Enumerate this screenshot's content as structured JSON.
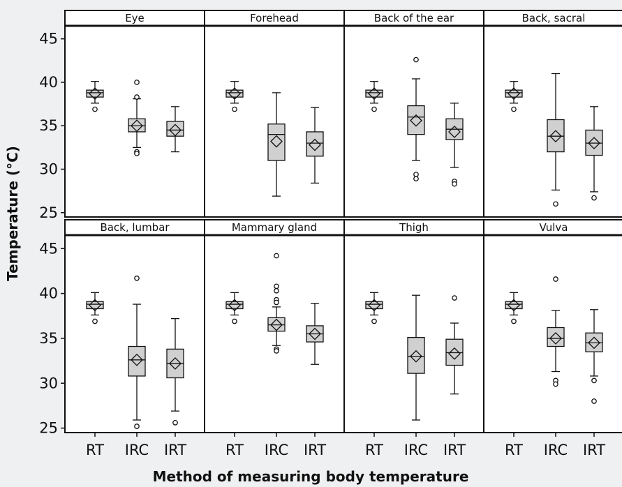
{
  "colors": {
    "background": "#eef0f1",
    "plot_area": "#ffffff",
    "box_fill": "#d0d0d0",
    "stroke": "#111111"
  },
  "chart_data": {
    "type": "boxplot",
    "xlabel": "Method of measuring body temperature",
    "ylabel": "Temperature (°C)",
    "ylim": [
      24.5,
      46.5
    ],
    "yticks": [
      25,
      30,
      35,
      40,
      45
    ],
    "categories": [
      "RT",
      "IRC",
      "IRT"
    ],
    "layout": "2 rows x 4 panels",
    "grid": false,
    "mean_marker": "diamond",
    "outlier_marker": "circle",
    "panels": [
      {
        "title": "Eye",
        "boxes": [
          {
            "category": "RT",
            "min": 37.6,
            "q1": 38.3,
            "median": 38.8,
            "q3": 39.1,
            "max": 40.1,
            "mean": 38.7,
            "outliers": [
              36.9
            ]
          },
          {
            "category": "IRC",
            "min": 32.5,
            "q1": 34.3,
            "median": 35.0,
            "q3": 35.8,
            "max": 38.1,
            "mean": 35.0,
            "outliers": [
              40.0,
              38.3,
              32.0,
              31.8
            ]
          },
          {
            "category": "IRT",
            "min": 32.0,
            "q1": 33.8,
            "median": 34.5,
            "q3": 35.5,
            "max": 37.2,
            "mean": 34.5,
            "outliers": []
          }
        ]
      },
      {
        "title": "Forehead",
        "boxes": [
          {
            "category": "RT",
            "min": 37.6,
            "q1": 38.3,
            "median": 38.8,
            "q3": 39.1,
            "max": 40.1,
            "mean": 38.7,
            "outliers": [
              36.9
            ]
          },
          {
            "category": "IRC",
            "min": 26.9,
            "q1": 31.0,
            "median": 34.0,
            "q3": 35.2,
            "max": 38.8,
            "mean": 33.2,
            "outliers": []
          },
          {
            "category": "IRT",
            "min": 28.4,
            "q1": 31.5,
            "median": 33.0,
            "q3": 34.3,
            "max": 37.1,
            "mean": 32.8,
            "outliers": []
          }
        ]
      },
      {
        "title": "Back of the ear",
        "boxes": [
          {
            "category": "RT",
            "min": 37.6,
            "q1": 38.3,
            "median": 38.8,
            "q3": 39.1,
            "max": 40.1,
            "mean": 38.7,
            "outliers": [
              36.9
            ]
          },
          {
            "category": "IRC",
            "min": 31.0,
            "q1": 34.0,
            "median": 36.0,
            "q3": 37.3,
            "max": 40.4,
            "mean": 35.6,
            "outliers": [
              42.6,
              29.4,
              28.9
            ]
          },
          {
            "category": "IRT",
            "min": 30.2,
            "q1": 33.4,
            "median": 34.6,
            "q3": 35.8,
            "max": 37.6,
            "mean": 34.3,
            "outliers": [
              28.6,
              28.3
            ]
          }
        ]
      },
      {
        "title": "Back, sacral",
        "boxes": [
          {
            "category": "RT",
            "min": 37.6,
            "q1": 38.3,
            "median": 38.8,
            "q3": 39.1,
            "max": 40.1,
            "mean": 38.7,
            "outliers": [
              36.9
            ]
          },
          {
            "category": "IRC",
            "min": 27.6,
            "q1": 32.0,
            "median": 33.8,
            "q3": 35.7,
            "max": 41.0,
            "mean": 33.8,
            "outliers": [
              26.0
            ]
          },
          {
            "category": "IRT",
            "min": 27.4,
            "q1": 31.6,
            "median": 33.0,
            "q3": 34.5,
            "max": 37.2,
            "mean": 33.0,
            "outliers": [
              26.7
            ]
          }
        ]
      },
      {
        "title": "Back, lumbar",
        "boxes": [
          {
            "category": "RT",
            "min": 37.6,
            "q1": 38.3,
            "median": 38.8,
            "q3": 39.1,
            "max": 40.1,
            "mean": 38.7,
            "outliers": [
              36.9
            ]
          },
          {
            "category": "IRC",
            "min": 25.9,
            "q1": 30.8,
            "median": 32.6,
            "q3": 34.1,
            "max": 38.8,
            "mean": 32.6,
            "outliers": [
              41.7,
              25.2
            ]
          },
          {
            "category": "IRT",
            "min": 26.9,
            "q1": 30.6,
            "median": 32.2,
            "q3": 33.8,
            "max": 37.2,
            "mean": 32.2,
            "outliers": [
              25.6
            ]
          }
        ]
      },
      {
        "title": "Mammary gland",
        "boxes": [
          {
            "category": "RT",
            "min": 37.6,
            "q1": 38.3,
            "median": 38.8,
            "q3": 39.1,
            "max": 40.1,
            "mean": 38.7,
            "outliers": [
              36.9
            ]
          },
          {
            "category": "IRC",
            "min": 34.2,
            "q1": 35.8,
            "median": 36.5,
            "q3": 37.3,
            "max": 38.5,
            "mean": 36.5,
            "outliers": [
              44.2,
              40.8,
              40.3,
              39.3,
              39.0,
              33.8,
              33.6
            ]
          },
          {
            "category": "IRT",
            "min": 32.1,
            "q1": 34.6,
            "median": 35.5,
            "q3": 36.4,
            "max": 38.9,
            "mean": 35.5,
            "outliers": []
          }
        ]
      },
      {
        "title": "Thigh",
        "boxes": [
          {
            "category": "RT",
            "min": 37.6,
            "q1": 38.3,
            "median": 38.8,
            "q3": 39.1,
            "max": 40.1,
            "mean": 38.7,
            "outliers": [
              36.9
            ]
          },
          {
            "category": "IRC",
            "min": 25.9,
            "q1": 31.1,
            "median": 33.0,
            "q3": 35.1,
            "max": 39.8,
            "mean": 33.0,
            "outliers": []
          },
          {
            "category": "IRT",
            "min": 28.8,
            "q1": 32.0,
            "median": 33.4,
            "q3": 34.9,
            "max": 36.7,
            "mean": 33.3,
            "outliers": [
              39.5
            ]
          }
        ]
      },
      {
        "title": "Vulva",
        "boxes": [
          {
            "category": "RT",
            "min": 37.6,
            "q1": 38.3,
            "median": 38.8,
            "q3": 39.1,
            "max": 40.1,
            "mean": 38.7,
            "outliers": [
              36.9
            ]
          },
          {
            "category": "IRC",
            "min": 31.3,
            "q1": 34.1,
            "median": 35.0,
            "q3": 36.2,
            "max": 38.1,
            "mean": 35.0,
            "outliers": [
              41.6,
              30.3,
              29.9
            ]
          },
          {
            "category": "IRT",
            "min": 30.8,
            "q1": 33.5,
            "median": 34.5,
            "q3": 35.6,
            "max": 38.2,
            "mean": 34.5,
            "outliers": [
              30.3,
              28.0
            ]
          }
        ]
      }
    ]
  }
}
